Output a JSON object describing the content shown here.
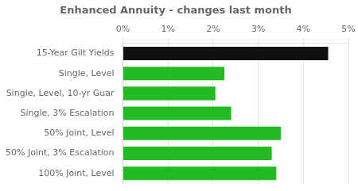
{
  "chart_data": {
    "type": "bar",
    "orientation": "horizontal",
    "title": "Enhanced Annuity - changes last month",
    "categories": [
      "15-Year Gilt Yields",
      "Single, Level",
      "Single, Level, 10-yr Guar",
      "Single, 3% Escalation",
      "50% Joint, Level",
      "50% Joint, 3% Escalation",
      "100% Joint, Level"
    ],
    "values": [
      4.55,
      2.25,
      2.05,
      2.4,
      3.5,
      3.3,
      3.4
    ],
    "colors": [
      "#111111",
      "#22bb22",
      "#22bb22",
      "#22bb22",
      "#22bb22",
      "#22bb22",
      "#22bb22"
    ],
    "xlim": [
      0,
      5
    ],
    "xticks": [
      {
        "value": 0,
        "label": "0%"
      },
      {
        "value": 1,
        "label": "1%"
      },
      {
        "value": 2,
        "label": "2%"
      },
      {
        "value": 3,
        "label": "3%"
      },
      {
        "value": 4,
        "label": "4%"
      },
      {
        "value": 5,
        "label": "5%"
      }
    ],
    "grid": true
  }
}
